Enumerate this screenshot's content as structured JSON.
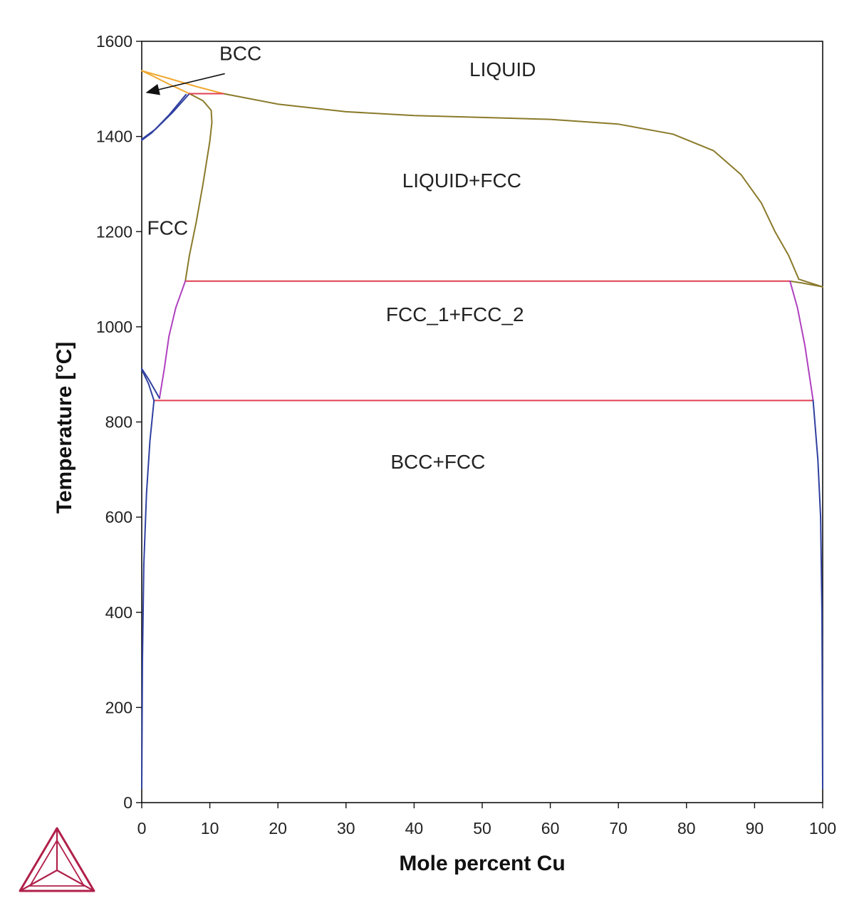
{
  "chart_data": {
    "type": "line",
    "title": "",
    "xlabel": "Mole percent Cu",
    "ylabel": "Temperature [°C]",
    "xlim": [
      0,
      100
    ],
    "ylim": [
      0,
      1600
    ],
    "x_ticks": [
      "0",
      "10",
      "20",
      "30",
      "40",
      "50",
      "60",
      "70",
      "80",
      "90",
      "100"
    ],
    "y_ticks": [
      "0",
      "200",
      "400",
      "600",
      "800",
      "1000",
      "1200",
      "1400",
      "1600"
    ],
    "grid": false,
    "legend": "none",
    "colors": {
      "liquidus": "#8a7a2a",
      "delta_bcc": "#f0a830",
      "gamma_fcc": "#3040a0",
      "fcc_solvus": "#b040c0",
      "invariant": "#e04050",
      "logo": "#b0204a"
    },
    "series": [
      {
        "id": "bcc-liquid-left",
        "color_key": "delta_bcc",
        "points": [
          [
            0,
            1538
          ],
          [
            1.5,
            1528
          ],
          [
            4,
            1510
          ],
          [
            7,
            1490
          ]
        ]
      },
      {
        "id": "bcc-liquid-right",
        "color_key": "delta_bcc",
        "points": [
          [
            0,
            1538
          ],
          [
            4,
            1522
          ],
          [
            8,
            1505
          ],
          [
            12,
            1490
          ]
        ]
      },
      {
        "id": "bcc-fcc-upper",
        "color_key": "gamma_fcc",
        "points": [
          [
            0,
            1394
          ],
          [
            2,
            1415
          ],
          [
            4.5,
            1450
          ],
          [
            7,
            1490
          ]
        ]
      },
      {
        "id": "bcc-fcc-lower",
        "color_key": "gamma_fcc",
        "points": [
          [
            0,
            1392
          ],
          [
            1.5,
            1408
          ],
          [
            4,
            1445
          ],
          [
            6.5,
            1488
          ]
        ]
      },
      {
        "id": "liquidus",
        "color_key": "liquidus",
        "points": [
          [
            12,
            1490
          ],
          [
            20,
            1468
          ],
          [
            30,
            1452
          ],
          [
            40,
            1444
          ],
          [
            50,
            1440
          ],
          [
            60,
            1436
          ],
          [
            70,
            1426
          ],
          [
            78,
            1405
          ],
          [
            84,
            1370
          ],
          [
            88,
            1320
          ],
          [
            91,
            1260
          ],
          [
            93,
            1200
          ],
          [
            95,
            1150
          ],
          [
            96.5,
            1100
          ]
        ]
      },
      {
        "id": "liquidus-cu-end",
        "color_key": "liquidus",
        "points": [
          [
            96.5,
            1100
          ],
          [
            100,
            1084
          ]
        ]
      },
      {
        "id": "solidus-fe-rich",
        "color_key": "liquidus",
        "points": [
          [
            7,
            1490
          ],
          [
            9,
            1475
          ],
          [
            10.2,
            1455
          ],
          [
            10.3,
            1430
          ],
          [
            10,
            1390
          ],
          [
            9,
            1300
          ],
          [
            8,
            1220
          ],
          [
            7,
            1150
          ],
          [
            6.4,
            1096
          ]
        ]
      },
      {
        "id": "solidus-cu-rich",
        "color_key": "liquidus",
        "points": [
          [
            95.2,
            1096
          ],
          [
            97,
            1092
          ],
          [
            100,
            1084
          ]
        ]
      },
      {
        "id": "peritectic",
        "color_key": "invariant",
        "points": [
          [
            7,
            1490
          ],
          [
            12,
            1490
          ]
        ]
      },
      {
        "id": "monotectic",
        "color_key": "invariant",
        "points": [
          [
            6.4,
            1096
          ],
          [
            95.2,
            1096
          ]
        ]
      },
      {
        "id": "eutectoid",
        "color_key": "invariant",
        "points": [
          [
            1.8,
            845
          ],
          [
            98.6,
            845
          ]
        ]
      },
      {
        "id": "fcc-solvus-fe-rich",
        "color_key": "fcc_solvus",
        "points": [
          [
            6.4,
            1096
          ],
          [
            5,
            1040
          ],
          [
            4,
            980
          ],
          [
            3.3,
            910
          ],
          [
            2.6,
            850
          ]
        ]
      },
      {
        "id": "fcc-solvus-cu-rich",
        "color_key": "fcc_solvus",
        "points": [
          [
            95.2,
            1096
          ],
          [
            96.3,
            1040
          ],
          [
            97.4,
            960
          ],
          [
            98.6,
            845
          ]
        ]
      },
      {
        "id": "alpha-gamma-upper",
        "color_key": "gamma_fcc",
        "points": [
          [
            0,
            912
          ],
          [
            1,
            890
          ],
          [
            2.6,
            850
          ]
        ]
      },
      {
        "id": "alpha-gamma-lower",
        "color_key": "gamma_fcc",
        "points": [
          [
            0,
            910
          ],
          [
            1,
            880
          ],
          [
            1.8,
            845
          ]
        ]
      },
      {
        "id": "bcc-solvus-fe-rich",
        "color_key": "gamma_fcc",
        "points": [
          [
            1.8,
            845
          ],
          [
            1.2,
            760
          ],
          [
            0.7,
            650
          ],
          [
            0.3,
            500
          ],
          [
            0.1,
            300
          ],
          [
            0,
            30
          ]
        ]
      },
      {
        "id": "fcc-solvus-cu-end",
        "color_key": "gamma_fcc",
        "points": [
          [
            98.6,
            845
          ],
          [
            99.3,
            720
          ],
          [
            99.7,
            600
          ],
          [
            99.9,
            400
          ],
          [
            100,
            30
          ]
        ]
      }
    ],
    "labels": [
      {
        "id": "label-bcc",
        "text": "BCC",
        "x": 14.5,
        "y": 1560
      },
      {
        "id": "label-liquid",
        "text": "LIQUID",
        "x": 53,
        "y": 1527
      },
      {
        "id": "label-liquid-fcc",
        "text": "LIQUID+FCC",
        "x": 47,
        "y": 1293
      },
      {
        "id": "label-fcc",
        "text": "FCC",
        "x": 3.8,
        "y": 1194
      },
      {
        "id": "label-fcc1-fcc2",
        "text": "FCC_1+FCC_2",
        "x": 46,
        "y": 1012
      },
      {
        "id": "label-bcc-fcc",
        "text": "BCC+FCC",
        "x": 43.5,
        "y": 702
      }
    ],
    "annotations": [
      {
        "id": "bcc-arrow",
        "from": [
          12.2,
          1532
        ],
        "to": [
          0.9,
          1493
        ]
      }
    ]
  }
}
